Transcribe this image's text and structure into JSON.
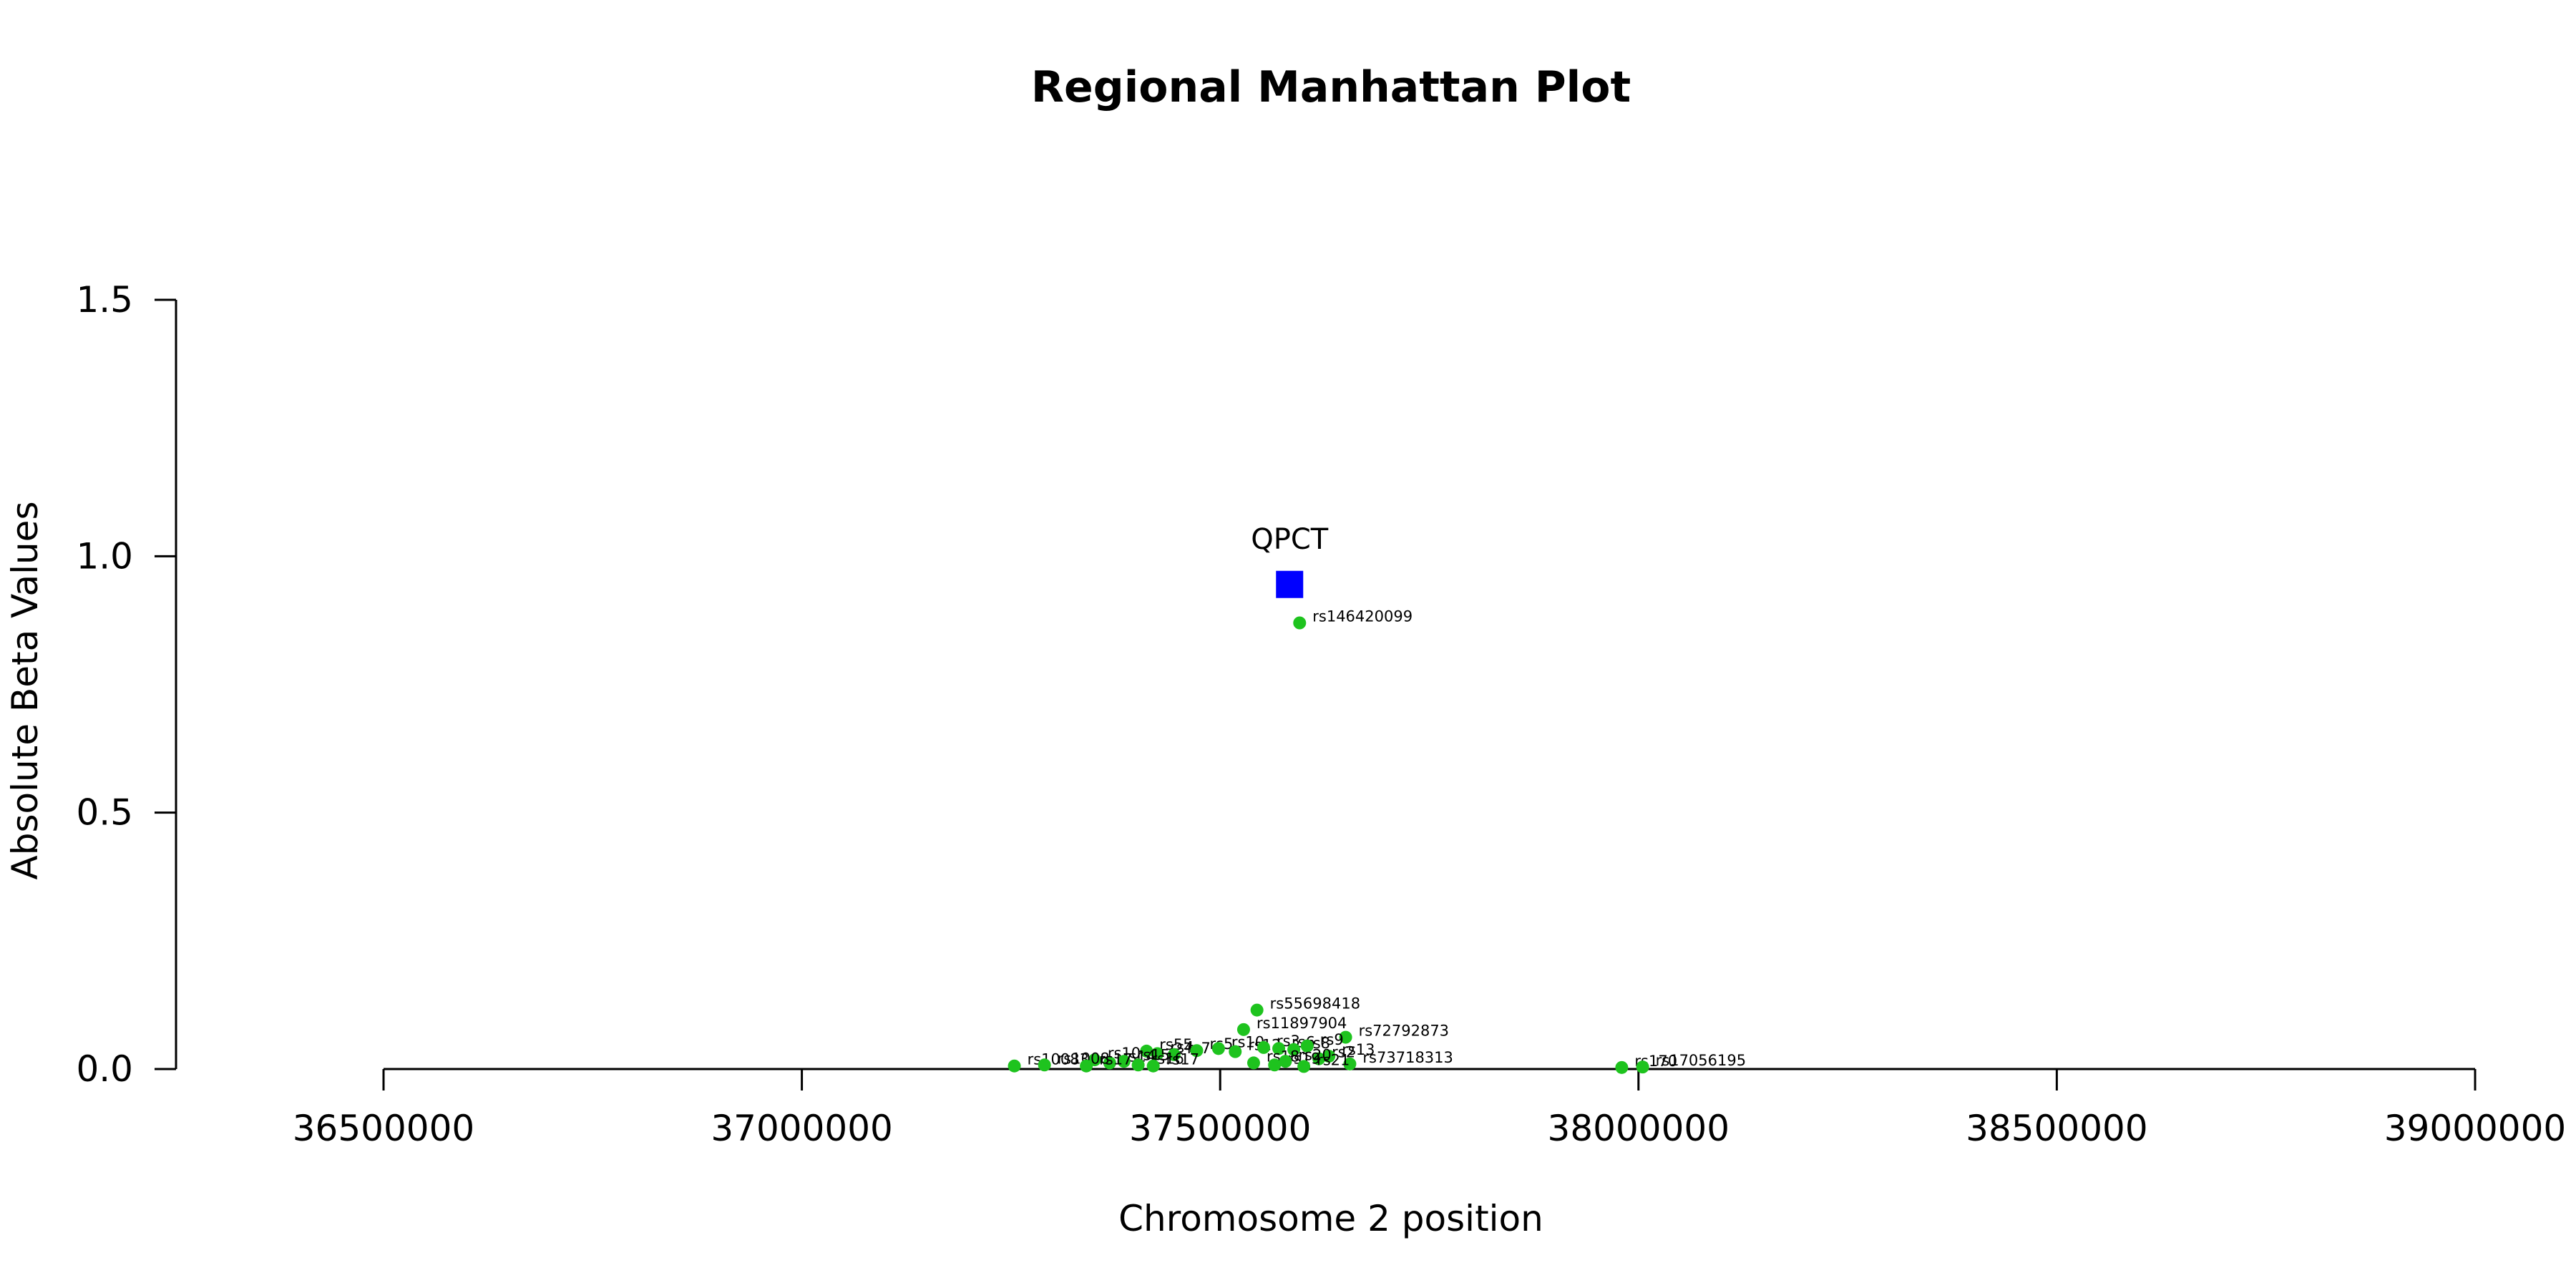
{
  "chart_data": {
    "type": "scatter",
    "title": "Regional Manhattan Plot",
    "xlabel": "Chromosome 2 position",
    "ylabel": "Absolute Beta Values",
    "xlim": [
      36500000,
      39000000
    ],
    "ylim": [
      0,
      1.5
    ],
    "x_ticks": [
      36500000,
      37000000,
      37500000,
      38000000,
      38500000,
      39000000
    ],
    "y_ticks": [
      0.0,
      0.5,
      1.0,
      1.5
    ],
    "x_tick_labels": [
      "36500000",
      "37000000",
      "37500000",
      "38000000",
      "38500000",
      "39000000"
    ],
    "y_tick_labels": [
      "0.0",
      "0.5",
      "1.0",
      "1.5"
    ],
    "grid": false,
    "gene": {
      "name": "QPCT",
      "x": 37583000,
      "y": 0.945,
      "color": "#0000ff"
    },
    "snp_color": "#1ec31e",
    "points": [
      {
        "label": "rs146420099",
        "x": 37595000,
        "y": 0.87
      },
      {
        "label": "rs55698418",
        "x": 37544000,
        "y": 0.115
      },
      {
        "label": "rs11897904",
        "x": 37528000,
        "y": 0.077
      },
      {
        "label": "rs72792873",
        "x": 37650000,
        "y": 0.062
      },
      {
        "label": "rs55",
        "x": 37412000,
        "y": 0.035
      },
      {
        "label": "rs4",
        "x": 37425000,
        "y": 0.03
      },
      {
        "label": "rs7",
        "x": 37445000,
        "y": 0.028
      },
      {
        "label": "rs5",
        "x": 37472000,
        "y": 0.036
      },
      {
        "label": "rs10",
        "x": 37498000,
        "y": 0.04
      },
      {
        "label": "rs12",
        "x": 37518000,
        "y": 0.034
      },
      {
        "label": "rs3",
        "x": 37552000,
        "y": 0.042
      },
      {
        "label": "rs6",
        "x": 37570000,
        "y": 0.04
      },
      {
        "label": "rs8",
        "x": 37588000,
        "y": 0.038
      },
      {
        "label": "rs9",
        "x": 37604000,
        "y": 0.045
      },
      {
        "label": "rs2",
        "x": 37618000,
        "y": 0.02
      },
      {
        "label": "rs13",
        "x": 37630000,
        "y": 0.025
      },
      {
        "label": "rs73718313",
        "x": 37655000,
        "y": 0.01
      },
      {
        "label": "rs10",
        "x": 37350000,
        "y": 0.018
      },
      {
        "label": "rs14",
        "x": 37368000,
        "y": 0.012
      },
      {
        "label": "rs15",
        "x": 37385000,
        "y": 0.015
      },
      {
        "label": "rs16",
        "x": 37402000,
        "y": 0.008
      },
      {
        "label": "rs17",
        "x": 37420000,
        "y": 0.006
      },
      {
        "label": "rs18",
        "x": 37540000,
        "y": 0.012
      },
      {
        "label": "rs19",
        "x": 37565000,
        "y": 0.008
      },
      {
        "label": "rs20",
        "x": 37578000,
        "y": 0.015
      },
      {
        "label": "rs21",
        "x": 37600000,
        "y": 0.005
      },
      {
        "label": "rs10083",
        "x": 37254000,
        "y": 0.006
      },
      {
        "label": "rs1008",
        "x": 37290000,
        "y": 0.008
      },
      {
        "label": "rs17",
        "x": 37340000,
        "y": 0.006
      },
      {
        "label": "rs170",
        "x": 37980000,
        "y": 0.003
      },
      {
        "label": "rs17056195",
        "x": 38005000,
        "y": 0.004
      }
    ]
  }
}
